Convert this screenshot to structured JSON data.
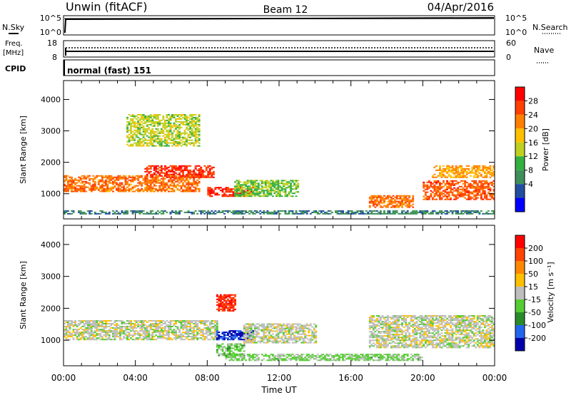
{
  "header": {
    "station": "Unwin (fitACF)",
    "beam": "Beam 12",
    "date": "04/Apr/2016"
  },
  "top_panel": {
    "left_label": "N.Sky",
    "right_label": "N.Search",
    "left_ticks": [
      "10^5",
      "10^0"
    ],
    "right_ticks": [
      "10^5",
      "10^0"
    ]
  },
  "freq_panel": {
    "left_label_1": "Freq.",
    "left_label_2": "[MHz]",
    "left_ticks": [
      "18",
      "8"
    ],
    "right_ticks": [
      "60",
      "0"
    ],
    "right_label": "Nave"
  },
  "cpid_panel": {
    "label": "CPID",
    "text": "normal (fast) 151"
  },
  "power_panel": {
    "ylabel": "Slant Range [km]",
    "yticks": [
      "4000",
      "3000",
      "2000",
      "1000"
    ],
    "colorbar_label": "Power [dB]",
    "colorbar_ticks": [
      "28",
      "24",
      "20",
      "16",
      "12",
      "8",
      "4"
    ],
    "colors": [
      "#0000ff",
      "#224ea0",
      "#3f8f5a",
      "#33b040",
      "#c0d020",
      "#ffc000",
      "#ff8000",
      "#ff4000",
      "#ff0000"
    ]
  },
  "velocity_panel": {
    "ylabel": "Slant Range [km]",
    "yticks": [
      "4000",
      "3000",
      "2000",
      "1000"
    ],
    "colorbar_label": "Velocity [m s⁻¹]",
    "colorbar_ticks": [
      "200",
      "100",
      "50",
      "15",
      "-15",
      "-50",
      "-100",
      "-200"
    ],
    "colors": [
      "#0000aa",
      "#2266ee",
      "#2b8a2b",
      "#55cc33",
      "#bebebe",
      "#ffc000",
      "#ff8800",
      "#ff4400",
      "#ff0000"
    ],
    "ground_scatter_color": "#bebebe"
  },
  "x_axis": {
    "ticks": [
      "00:00",
      "04:00",
      "08:00",
      "12:00",
      "16:00",
      "20:00",
      "00:00"
    ],
    "label": "Time UT"
  },
  "chart_data": {
    "type": "heatmap",
    "title": "Unwin (fitACF)   Beam 12   04/Apr/2016",
    "xlabel": "Time UT",
    "ylabel": "Slant Range [km]",
    "xlim": [
      "00:00",
      "24:00"
    ],
    "ylim": [
      200,
      4600
    ],
    "series": [
      {
        "name": "Power [dB]",
        "colorbar_range": [
          0,
          32
        ],
        "regions": [
          {
            "t_start": 0.0,
            "t_end": 7.5,
            "range_center": 1300,
            "range_halfwidth": 250,
            "value": 24
          },
          {
            "t_start": 4.5,
            "t_end": 8.3,
            "range_center": 1700,
            "range_halfwidth": 200,
            "value": 28
          },
          {
            "t_start": 8.0,
            "t_end": 10.5,
            "range_center": 1050,
            "range_halfwidth": 150,
            "value": 28
          },
          {
            "t_start": 9.5,
            "t_end": 13.0,
            "range_center": 1150,
            "range_halfwidth": 250,
            "value": 14
          },
          {
            "t_start": 3.5,
            "t_end": 7.5,
            "range_center": 3000,
            "range_halfwidth": 500,
            "value": 16
          },
          {
            "t_start": 17.0,
            "t_end": 19.5,
            "range_center": 750,
            "range_halfwidth": 200,
            "value": 24
          },
          {
            "t_start": 20.0,
            "t_end": 24.0,
            "range_center": 1100,
            "range_halfwidth": 300,
            "value": 26
          },
          {
            "t_start": 20.5,
            "t_end": 24.0,
            "range_center": 1700,
            "range_halfwidth": 200,
            "value": 22
          },
          {
            "t_start": 0.0,
            "t_end": 24.0,
            "range_center": 400,
            "range_halfwidth": 60,
            "value": 8
          }
        ]
      },
      {
        "name": "Velocity [m s-1]",
        "colorbar_range": [
          -250,
          250
        ],
        "regions": [
          {
            "t_start": 0.0,
            "t_end": 8.5,
            "range_center": 1300,
            "range_halfwidth": 300,
            "value": 0
          },
          {
            "t_start": 8.5,
            "t_end": 10.5,
            "range_center": 1150,
            "range_halfwidth": 150,
            "value": -200
          },
          {
            "t_start": 8.5,
            "t_end": 10.0,
            "range_center": 700,
            "range_halfwidth": 200,
            "value": -50
          },
          {
            "t_start": 8.5,
            "t_end": 9.5,
            "range_center": 2150,
            "range_halfwidth": 250,
            "value": 200
          },
          {
            "t_start": 10.0,
            "t_end": 14.0,
            "range_center": 1200,
            "range_halfwidth": 300,
            "value": 0
          },
          {
            "t_start": 17.0,
            "t_end": 24.0,
            "range_center": 1250,
            "range_halfwidth": 500,
            "value": 0
          },
          {
            "t_start": 9.0,
            "t_end": 20.0,
            "range_center": 450,
            "range_halfwidth": 100,
            "value": -40
          }
        ]
      }
    ],
    "legend": [
      "Power [dB]",
      "Velocity [m s-1]"
    ],
    "grid": false
  }
}
